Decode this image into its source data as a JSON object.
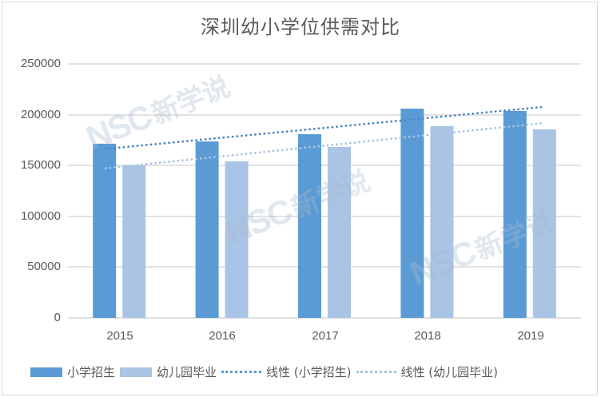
{
  "chart_data": {
    "type": "bar",
    "title": "深圳幼小学位供需对比",
    "categories": [
      "2015",
      "2016",
      "2017",
      "2018",
      "2019"
    ],
    "series": [
      {
        "name": "小学招生",
        "type": "bar",
        "color": "#5b9bd5",
        "values": [
          171500,
          173700,
          180800,
          206000,
          203600
        ]
      },
      {
        "name": "幼儿园毕业",
        "type": "bar",
        "color": "#a9c4e4",
        "values": [
          150200,
          154100,
          168200,
          188700,
          185500
        ]
      },
      {
        "name": "线性 (小学招生)",
        "type": "trendline",
        "color": "#5b9bd5",
        "values": [
          167600,
          177300,
          187000,
          196700,
          206400
        ]
      },
      {
        "name": "线性 (幼儿园毕业)",
        "type": "trendline",
        "color": "#a9c4e4",
        "values": [
          148600,
          159100,
          169500,
          180000,
          190400
        ]
      }
    ],
    "xlabel": "",
    "ylabel": "",
    "ylim": [
      0,
      250000
    ],
    "yticks": [
      0,
      50000,
      100000,
      150000,
      200000,
      250000
    ],
    "grid": true,
    "legend_position": "bottom"
  },
  "title": "深圳幼小学位供需对比",
  "yaxis": {
    "ticks": [
      "250000",
      "200000",
      "150000",
      "100000",
      "50000",
      "0"
    ]
  },
  "xaxis": {
    "ticks": [
      "2015",
      "2016",
      "2017",
      "2018",
      "2019"
    ]
  },
  "legend": {
    "items": [
      "小学招生",
      "幼儿园毕业",
      "线性 (小学招生)",
      "线性 (幼儿园毕业)"
    ]
  },
  "watermark": {
    "logo": "NSC",
    "text": "新学说"
  },
  "colors": {
    "primary_bar": "#5b9bd5",
    "secondary_bar": "#a9c4e4",
    "grid": "#d9d9d9",
    "text": "#595959"
  }
}
